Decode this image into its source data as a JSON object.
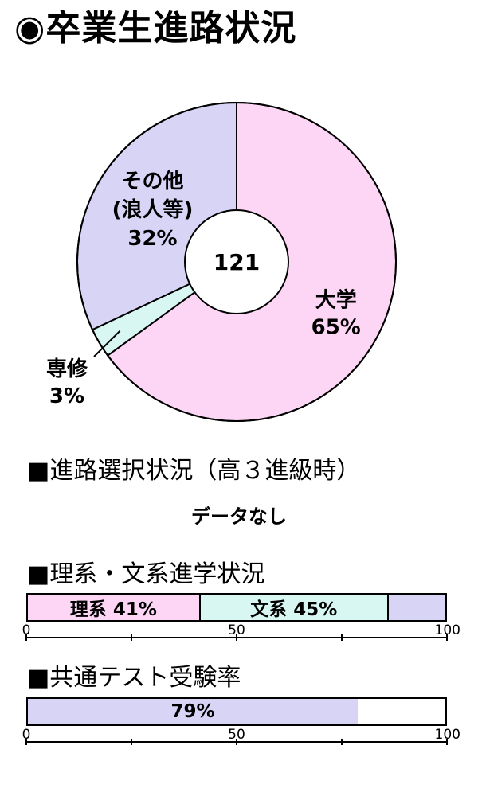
{
  "title": "◉卒業生進路状況",
  "chart_data": [
    {
      "type": "pie",
      "variant": "donut",
      "center_label": "121",
      "slices": [
        {
          "name": "大学",
          "value": 65,
          "label": "65%",
          "color": "#fdd6f5"
        },
        {
          "name": "専修",
          "value": 3,
          "label": "3%",
          "color": "#d9f7f2"
        },
        {
          "name": "その他\n(浪人等)",
          "value": 32,
          "label": "32%",
          "color": "#d8d4f6"
        }
      ]
    },
    {
      "type": "bar",
      "orientation": "horizontal-stacked",
      "section_title": "■理系・文系進学状況",
      "xlim": [
        0,
        100
      ],
      "ticks": [
        "0",
        "50",
        "100"
      ],
      "segments": [
        {
          "name": "理系",
          "value": 41,
          "label": "理系 41%",
          "color": "#fdd6f5"
        },
        {
          "name": "文系",
          "value": 45,
          "label": "文系 45%",
          "color": "#d9f7f2"
        },
        {
          "name": "",
          "value": 14,
          "label": "",
          "color": "#d8d4f6"
        }
      ]
    },
    {
      "type": "bar",
      "orientation": "horizontal",
      "section_title": "■共通テスト受験率",
      "xlim": [
        0,
        100
      ],
      "ticks": [
        "0",
        "50",
        "100"
      ],
      "segments": [
        {
          "name": "",
          "value": 79,
          "label": "79%",
          "color": "#d8d4f6"
        }
      ]
    }
  ],
  "course_selection": {
    "title": "■進路選択状況（高３進級時）",
    "message": "データなし"
  }
}
